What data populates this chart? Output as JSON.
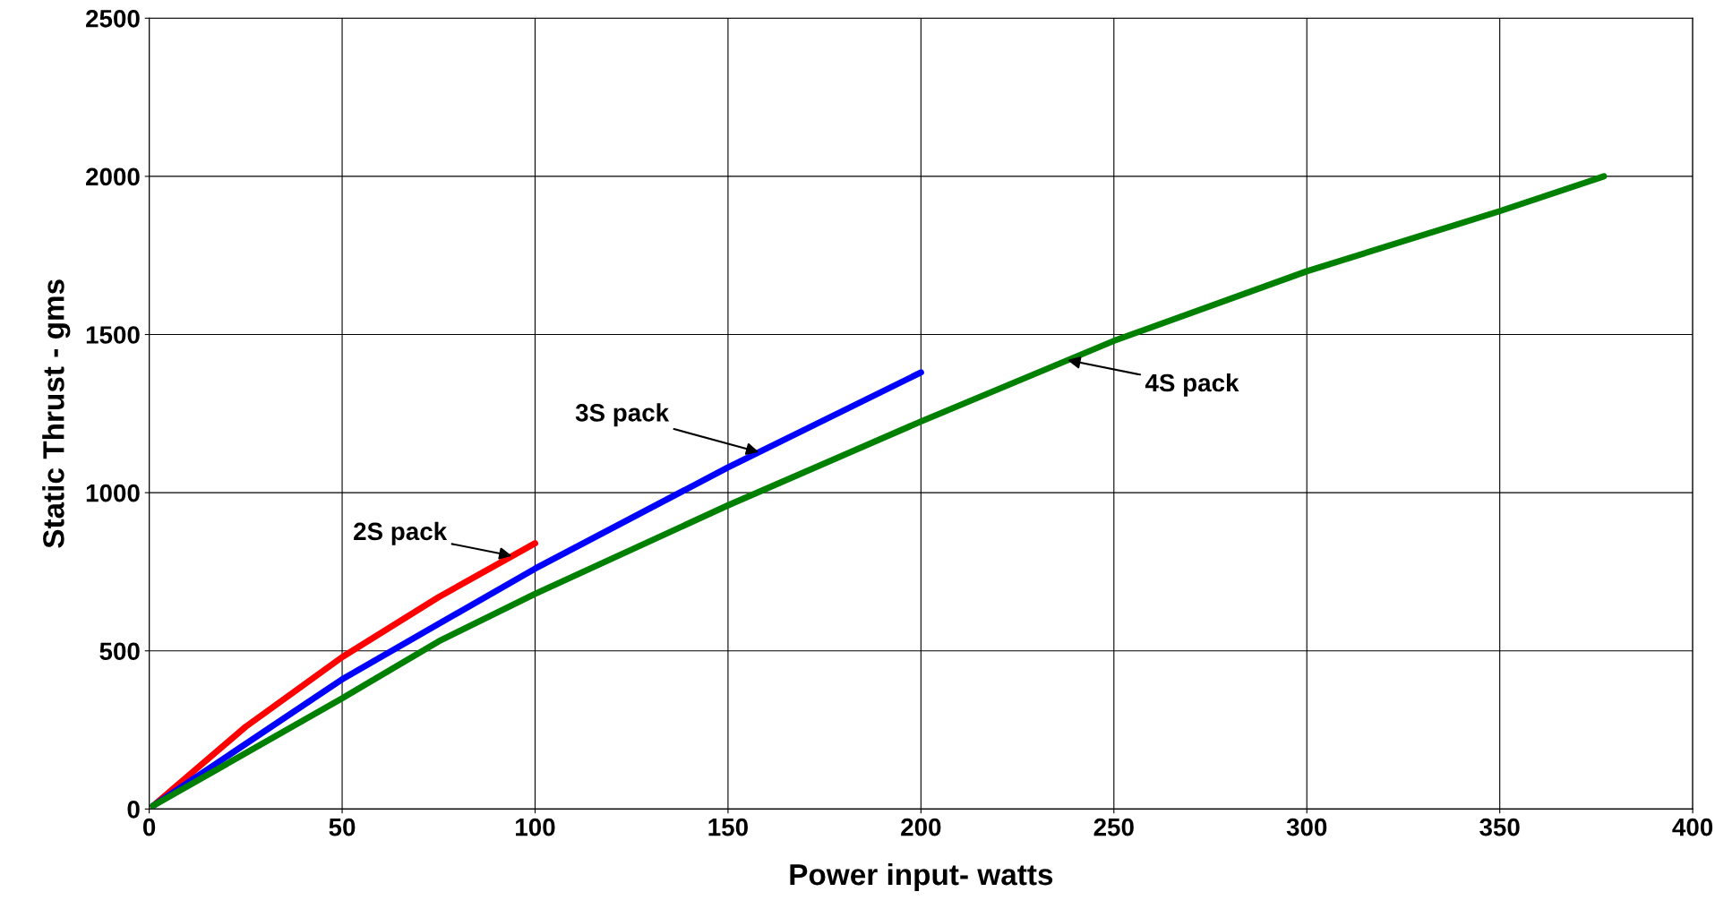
{
  "chart_data": {
    "type": "line",
    "xlabel": "Power input- watts",
    "ylabel": "Static Thrust - gms",
    "xlim": [
      0,
      400
    ],
    "xticks": [
      0,
      50,
      100,
      150,
      200,
      250,
      300,
      350,
      400
    ],
    "ylim": [
      0,
      2500
    ],
    "yticks": [
      0,
      500,
      1000,
      1500,
      2000,
      2500
    ],
    "grid": true,
    "legend": false,
    "marker": "none",
    "line_style": "solid",
    "series": [
      {
        "color": "#ff0000",
        "x": [
          1,
          25,
          50,
          75,
          100
        ],
        "values": [
          10,
          260,
          480,
          670,
          840
        ]
      },
      {
        "color": "#0000ff",
        "x": [
          1,
          50,
          100,
          150,
          200
        ],
        "values": [
          10,
          410,
          760,
          1080,
          1380
        ]
      },
      {
        "color": "#008000",
        "x": [
          1,
          50,
          75,
          100,
          150,
          200,
          250,
          300,
          350,
          377
        ],
        "values": [
          10,
          350,
          530,
          680,
          960,
          1225,
          1480,
          1700,
          1890,
          2000
        ]
      }
    ],
    "annotations": [
      {
        "text": "2S pack",
        "x": 94,
        "y": 800
      },
      {
        "text": "3S pack",
        "x": 158,
        "y": 1128
      },
      {
        "text": "4S pack",
        "x": 238,
        "y": 1419
      }
    ]
  }
}
